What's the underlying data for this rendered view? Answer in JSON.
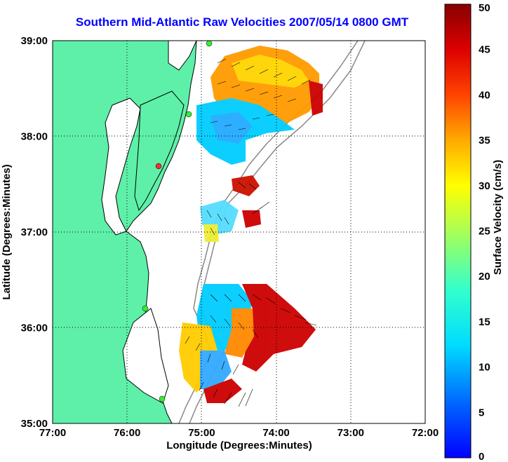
{
  "title": "Southern Mid-Atlantic Raw Velocities 2007/05/14 0800 GMT",
  "xlabel": "Longitude (Degrees:Minutes)",
  "ylabel": "Latitude (Degrees:Minutes)",
  "x_ticks": [
    "77:00",
    "76:00",
    "75:00",
    "74:00",
    "73:00",
    "72:00"
  ],
  "y_ticks": [
    "39:00",
    "38:00",
    "37:00",
    "36:00",
    "35:00"
  ],
  "colorbar": {
    "label": "Surface Velocity (cm/s)",
    "ticks": [
      "50",
      "45",
      "40",
      "35",
      "30",
      "25",
      "20",
      "15",
      "10",
      "5",
      "0"
    ],
    "range": [
      0,
      50
    ]
  },
  "colors": {
    "land": "#5ef0a8",
    "title": "#0000ff",
    "coast": "#000000",
    "grid": "#000000"
  },
  "map": {
    "lon_range": [
      -77,
      -72
    ],
    "lat_range": [
      35,
      39
    ]
  }
}
